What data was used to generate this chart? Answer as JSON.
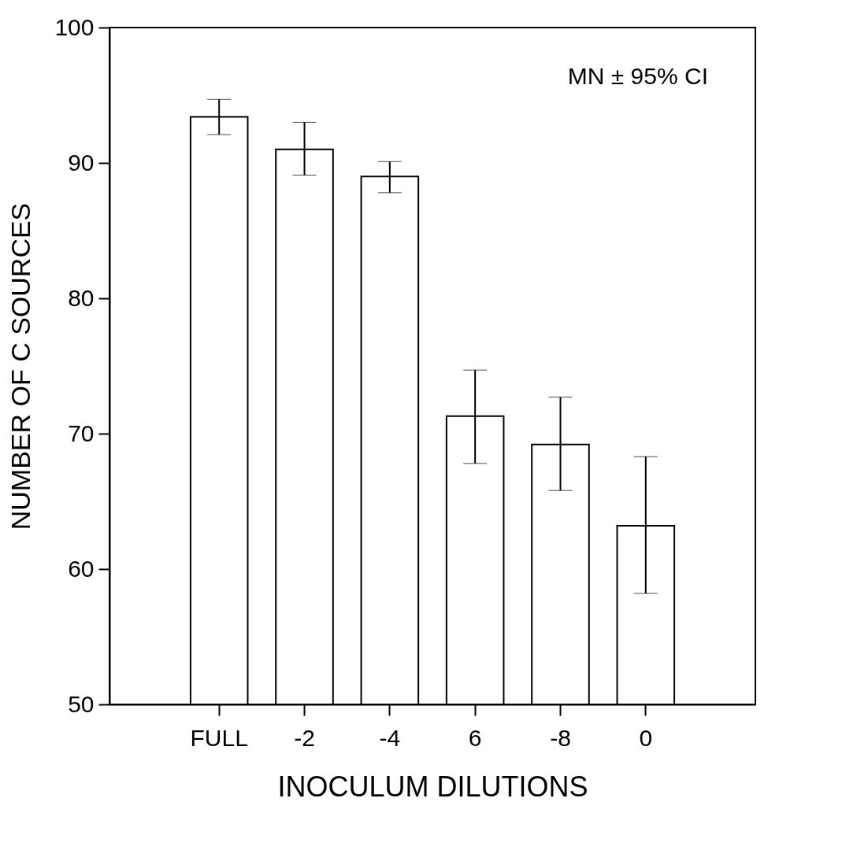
{
  "chart_data": {
    "type": "bar",
    "xlabel": "INOCULUM DILUTIONS",
    "ylabel": "NUMBER OF C SOURCES",
    "categories": [
      "FULL",
      "-2",
      "-4",
      "6",
      "-8",
      "0"
    ],
    "values": [
      93.4,
      91.0,
      89.0,
      71.3,
      69.2,
      63.2
    ],
    "errors": [
      [
        92.1,
        94.7
      ],
      [
        89.1,
        93.0
      ],
      [
        87.8,
        90.1
      ],
      [
        67.8,
        74.7
      ],
      [
        65.8,
        72.7
      ],
      [
        58.2,
        68.3
      ]
    ],
    "color": "#ffffff",
    "ylim": [
      50,
      100
    ],
    "yticks": [
      50,
      60,
      70,
      80,
      90,
      100
    ],
    "grid": false,
    "annotations": [
      "MN ± 95% CI"
    ]
  }
}
